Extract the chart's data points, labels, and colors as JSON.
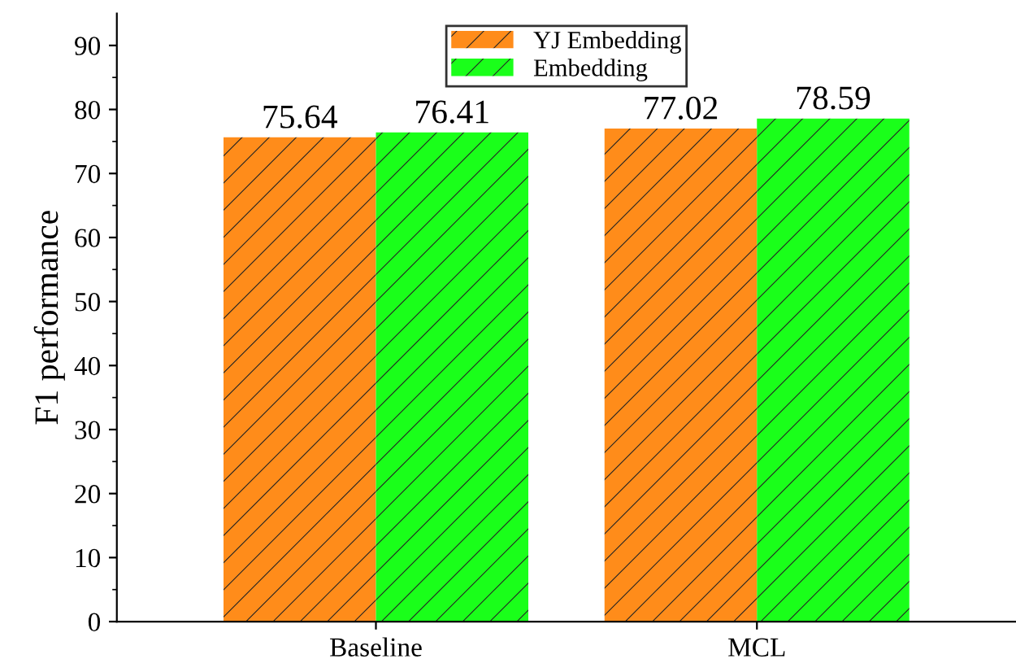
{
  "chart_data": {
    "type": "bar",
    "ylabel": "F1 performance",
    "categories": [
      "Baseline",
      "MCL"
    ],
    "series": [
      {
        "name": "YJ Embedding",
        "color": "#ff8c1a",
        "values": [
          75.64,
          77.02
        ]
      },
      {
        "name": "Embedding",
        "color": "#1aff1a",
        "values": [
          76.41,
          78.59
        ]
      }
    ],
    "ylim": [
      0,
      95
    ],
    "yticks": [
      0,
      10,
      20,
      30,
      40,
      50,
      60,
      70,
      80,
      90
    ],
    "data_labels": true,
    "legend": "top",
    "grid": false
  }
}
